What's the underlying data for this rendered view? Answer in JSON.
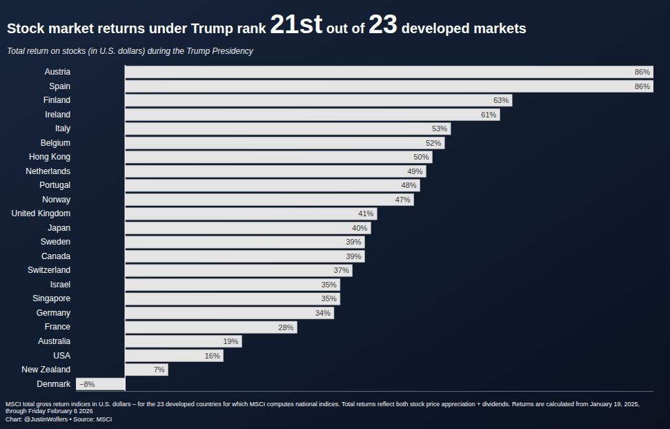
{
  "chart_data": {
    "type": "bar",
    "orientation": "horizontal",
    "title": "Stock market returns under Trump rank 21st out of 23 developed markets",
    "subtitle": "Total return on stocks (in U.S. dollars) during the Trump Presidency",
    "categories": [
      "Austria",
      "Spain",
      "Finland",
      "Ireland",
      "Italy",
      "Belgium",
      "Hong Kong",
      "Netherlands",
      "Portugal",
      "Norway",
      "United Kingdom",
      "Japan",
      "Sweden",
      "Canada",
      "Switzerland",
      "Israel",
      "Singapore",
      "Germany",
      "France",
      "Australia",
      "USA",
      "New Zealand",
      "Denmark"
    ],
    "values": [
      86,
      86,
      63,
      61,
      53,
      52,
      50,
      49,
      48,
      47,
      41,
      40,
      39,
      39,
      37,
      35,
      35,
      34,
      28,
      19,
      16,
      7,
      -8
    ],
    "value_labels": [
      "86%",
      "86%",
      "63%",
      "61%",
      "53%",
      "52%",
      "50%",
      "49%",
      "48%",
      "47%",
      "41%",
      "40%",
      "39%",
      "39%",
      "37%",
      "35%",
      "35%",
      "34%",
      "28%",
      "19%",
      "16%",
      "7%",
      "−8%"
    ],
    "color": "#e4e4e4",
    "xlim": [
      -8,
      86
    ],
    "xticks": [
      0
    ],
    "data_labels": true,
    "tick_labels": "y",
    "grid": false,
    "footnote": "MSCI total gross return indices in U.S. dollars – for the 23 developed countries for which MSCI computes national indices. Total returns reflect both stock price appreciation + dividends. Returns are calculated from January 19, 2025, through Friday February 6 2026",
    "credit": "Chart: @JustinWolfers • Source: MSCI"
  }
}
